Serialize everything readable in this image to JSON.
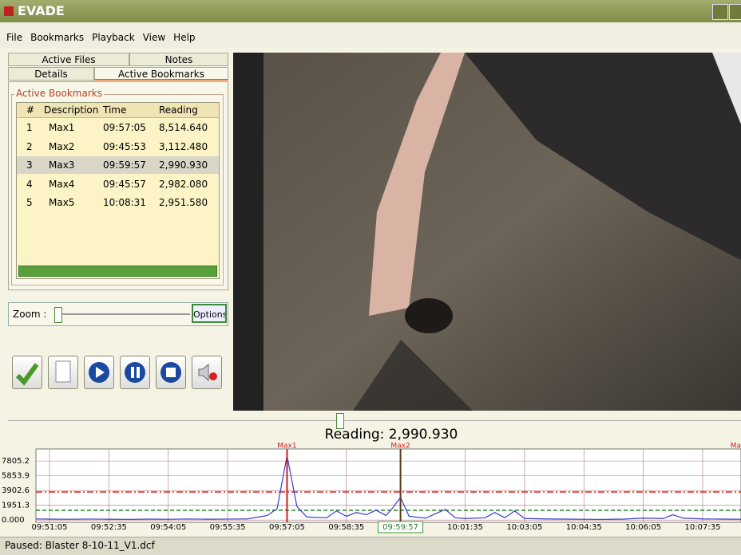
{
  "window": {
    "title": "EVADE"
  },
  "menu": [
    "File",
    "Bookmarks",
    "Playback",
    "View",
    "Help"
  ],
  "tabs": {
    "row1": [
      "Active Files",
      "Notes"
    ],
    "row2": [
      "Details",
      "Active Bookmarks"
    ]
  },
  "bookmarks": {
    "legend": "Active Bookmarks",
    "columns": [
      "#",
      "Description",
      "Time",
      "Reading"
    ],
    "rows": [
      [
        1,
        "Max1",
        "09:57:05",
        "8,514.640"
      ],
      [
        2,
        "Max2",
        "09:45:53",
        "3,112.480"
      ],
      [
        3,
        "Max3",
        "09:59:57",
        "2,990.930"
      ],
      [
        4,
        "Max4",
        "09:45:57",
        "2,982.080"
      ],
      [
        5,
        "Max5",
        "10:08:31",
        "2,951.580"
      ]
    ],
    "selected_row": 2
  },
  "zoom": {
    "label": "Zoom :",
    "button": "Options"
  },
  "reading": "Reading: 2,990.930",
  "graph": {
    "type": "line",
    "ylim": [
      -300,
      9400
    ],
    "yticks": [
      {
        "value": 0,
        "label": "0.000"
      },
      1951.3,
      3902.6,
      5853.9,
      7805.2
    ],
    "xticks": [
      "09:51:05",
      "09:52:35",
      "09:54:05",
      "09:55:35",
      "09:57:05",
      "09:58:35",
      "10:01:35",
      "10:03:05",
      "10:04:35",
      "10:06:05",
      "10:07:35"
    ],
    "x": [
      "09:50:35",
      "09:51:05",
      "09:51:35",
      "09:52:05",
      "09:52:35",
      "09:53:05",
      "09:53:35",
      "09:54:05",
      "09:54:35",
      "09:55:05",
      "09:55:35",
      "09:56:05",
      "09:56:35",
      "09:56:50",
      "09:57:05",
      "09:57:20",
      "09:57:35",
      "09:58:05",
      "09:58:20",
      "09:58:35",
      "09:58:50",
      "09:59:05",
      "09:59:20",
      "09:59:35",
      "09:59:45",
      "09:59:57",
      "10:00:10",
      "10:00:35",
      "10:01:05",
      "10:01:20",
      "10:01:35",
      "10:02:05",
      "10:02:20",
      "10:02:35",
      "10:02:50",
      "10:03:05",
      "10:03:35",
      "10:04:05",
      "10:04:35",
      "10:05:05",
      "10:05:35",
      "10:06:05",
      "10:06:35",
      "10:06:50",
      "10:07:05",
      "10:07:35",
      "10:08:05",
      "10:08:35"
    ],
    "values": [
      150,
      120,
      100,
      130,
      110,
      90,
      120,
      100,
      140,
      110,
      130,
      150,
      600,
      1500,
      8514.64,
      1800,
      400,
      300,
      1200,
      500,
      1000,
      700,
      1300,
      600,
      1600,
      2990.93,
      500,
      250,
      1400,
      300,
      200,
      300,
      1000,
      300,
      1200,
      200,
      150,
      120,
      100,
      90,
      120,
      250,
      200,
      700,
      250,
      150,
      120,
      100
    ],
    "color": "#3a3ad0",
    "thresholds": [
      {
        "value": 3700,
        "color": "#e02020"
      },
      {
        "value": 1300,
        "color": "#1a8a1a"
      }
    ],
    "markers": [
      "Max1",
      "Max2",
      "Ma"
    ],
    "cursor": "09:59:57"
  },
  "status": "Paused: Blaster 8-10-11_V1.dcf"
}
